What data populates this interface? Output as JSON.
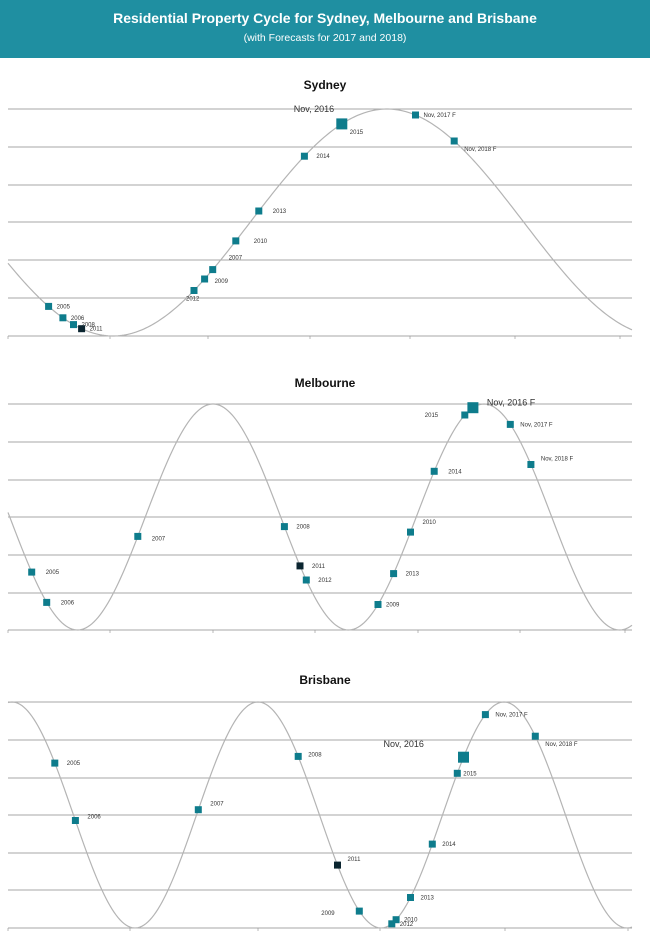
{
  "header": {
    "title": "Residential Property Cycle for Sydney, Melbourne and Brisbane",
    "subtitle": "(with Forecasts for 2017 and 2018)"
  },
  "colors": {
    "header": "#1f8fa1",
    "marker": "#0e7c8c",
    "marker_dark": "#0b2530",
    "curve": "#b4b4b4"
  },
  "chart_data": [
    {
      "type": "line",
      "title": "Sydney",
      "points": [
        {
          "label": "2005",
          "t": 0.065
        },
        {
          "label": "2006",
          "t": 0.088
        },
        {
          "label": "2008",
          "t": 0.105
        },
        {
          "label": "2011",
          "t": 0.118,
          "dark": true
        },
        {
          "label": "2012",
          "t": 0.298
        },
        {
          "label": "2009",
          "t": 0.315
        },
        {
          "label": "2007",
          "t": 0.328
        },
        {
          "label": "2010",
          "t": 0.365
        },
        {
          "label": "2013",
          "t": 0.402
        },
        {
          "label": "2014",
          "t": 0.475
        },
        {
          "label": "2015",
          "t": 0.535,
          "big": true
        },
        {
          "label": "Nov, 2016",
          "t": 0.535,
          "text_only": true
        },
        {
          "label": "Nov, 2017 F",
          "t": 0.653
        },
        {
          "label": "Nov, 2018 F",
          "t": 0.715
        }
      ]
    },
    {
      "type": "line",
      "title": "Melbourne",
      "points": [
        {
          "label": "2005",
          "t": 0.038
        },
        {
          "label": "2006",
          "t": 0.062
        },
        {
          "label": "2007",
          "t": 0.208
        },
        {
          "label": "2008",
          "t": 0.443
        },
        {
          "label": "2011",
          "t": 0.468,
          "dark": true
        },
        {
          "label": "2012",
          "t": 0.478
        },
        {
          "label": "2009",
          "t": 0.593
        },
        {
          "label": "2013",
          "t": 0.618
        },
        {
          "label": "2010",
          "t": 0.645
        },
        {
          "label": "2014",
          "t": 0.683
        },
        {
          "label": "2015",
          "t": 0.732
        },
        {
          "label": "Nov, 2016 F",
          "t": 0.745,
          "big": true
        },
        {
          "label": "Nov, 2017 F",
          "t": 0.805
        },
        {
          "label": "Nov, 2018 F",
          "t": 0.838
        }
      ]
    },
    {
      "type": "line",
      "title": "Brisbane",
      "points": [
        {
          "label": "2005",
          "t": 0.075
        },
        {
          "label": "2006",
          "t": 0.108
        },
        {
          "label": "2007",
          "t": 0.305
        },
        {
          "label": "2008",
          "t": 0.465
        },
        {
          "label": "2011",
          "t": 0.528,
          "dark": true
        },
        {
          "label": "2009",
          "t": 0.563
        },
        {
          "label": "2012",
          "t": 0.615
        },
        {
          "label": "2010",
          "t": 0.622
        },
        {
          "label": "2013",
          "t": 0.645
        },
        {
          "label": "2014",
          "t": 0.68
        },
        {
          "label": "2015",
          "t": 0.72
        },
        {
          "label": "Nov, 2016",
          "t": 0.73,
          "big": true
        },
        {
          "label": "Nov, 2017 F",
          "t": 0.765
        },
        {
          "label": "Nov, 2018 F",
          "t": 0.845
        }
      ]
    }
  ]
}
